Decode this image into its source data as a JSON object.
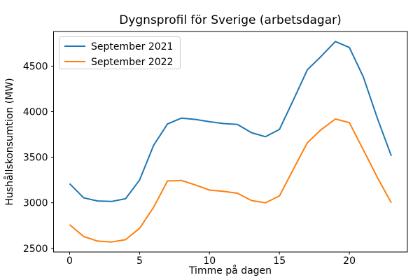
{
  "chart_data": {
    "type": "line",
    "title": "Dygnsprofil för Sverige (arbetsdagar)",
    "xlabel": "Timme på dagen",
    "ylabel": "Hushållskonsumtion (MW)",
    "x": [
      0,
      1,
      2,
      3,
      4,
      5,
      6,
      7,
      8,
      9,
      10,
      11,
      12,
      13,
      14,
      15,
      16,
      17,
      18,
      19,
      20,
      21,
      22,
      23
    ],
    "series": [
      {
        "name": "September 2021",
        "color": "#1f77b4",
        "values": [
          3210,
          3055,
          3020,
          3015,
          3045,
          3250,
          3630,
          3865,
          3930,
          3915,
          3890,
          3870,
          3860,
          3770,
          3725,
          3805,
          4130,
          4460,
          4610,
          4770,
          4705,
          4380,
          3930,
          3515
        ]
      },
      {
        "name": "September 2022",
        "color": "#ff7f0e",
        "values": [
          2760,
          2630,
          2580,
          2570,
          2595,
          2720,
          2950,
          3240,
          3245,
          3195,
          3140,
          3125,
          3105,
          3025,
          3000,
          3075,
          3370,
          3660,
          3805,
          3920,
          3880,
          3580,
          3280,
          3000
        ]
      }
    ],
    "xticks": [
      0,
      5,
      10,
      15,
      20
    ],
    "yticks": [
      2500,
      3000,
      3500,
      4000,
      4500
    ],
    "xlim": [
      -1.15,
      24.15
    ],
    "ylim": [
      2460,
      4880
    ],
    "grid": false,
    "legend_position": "upper left"
  }
}
